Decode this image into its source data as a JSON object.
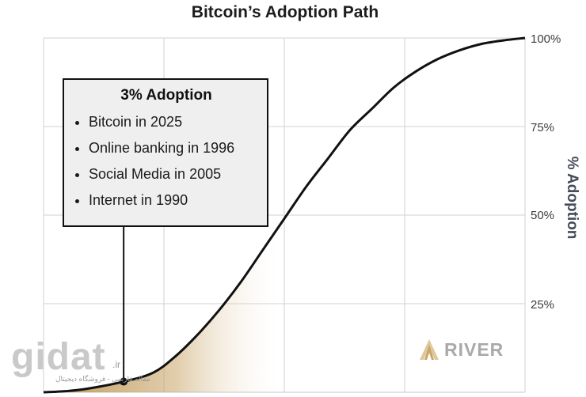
{
  "chart_data": {
    "type": "line",
    "title": "Bitcoin’s Adoption Path",
    "ylabel": "% Adoption",
    "xlabel": "",
    "y_ticks": [
      "25%",
      "50%",
      "75%",
      "100%"
    ],
    "ylim": [
      0,
      100
    ],
    "grid": true,
    "series": [
      {
        "values": [
          0,
          0.3,
          1,
          3,
          5.5,
          10,
          16,
          23,
          31,
          40,
          49,
          58,
          66,
          74,
          80,
          86,
          90.5,
          94,
          96.5,
          98.3,
          99.3,
          100
        ],
        "color": "#111111"
      }
    ],
    "x": [
      0,
      0.05,
      0.1,
      0.183,
      0.25,
      0.3,
      0.35,
      0.4,
      0.45,
      0.5,
      0.55,
      0.6,
      0.65,
      0.7,
      0.75,
      0.8,
      0.85,
      0.9,
      0.95,
      1.0,
      1.05,
      1.1
    ],
    "highlight": {
      "x": 0.183,
      "y": 3
    },
    "shaded_until_y": 50,
    "shade_color": "#b8914f",
    "annotation": {
      "title": "3% Adoption",
      "items": [
        "Bitcoin in 2025",
        "Online banking in 1996",
        "Social Media in 2005",
        "Internet in 1990"
      ]
    }
  },
  "brand": {
    "name": "RIVER",
    "icon": "river-mountain-logo-icon"
  },
  "watermark": {
    "word": "gidat",
    "tld": ".ir",
    "tagline": "مقاله فارسی - فروشگاه دیجیتال"
  }
}
